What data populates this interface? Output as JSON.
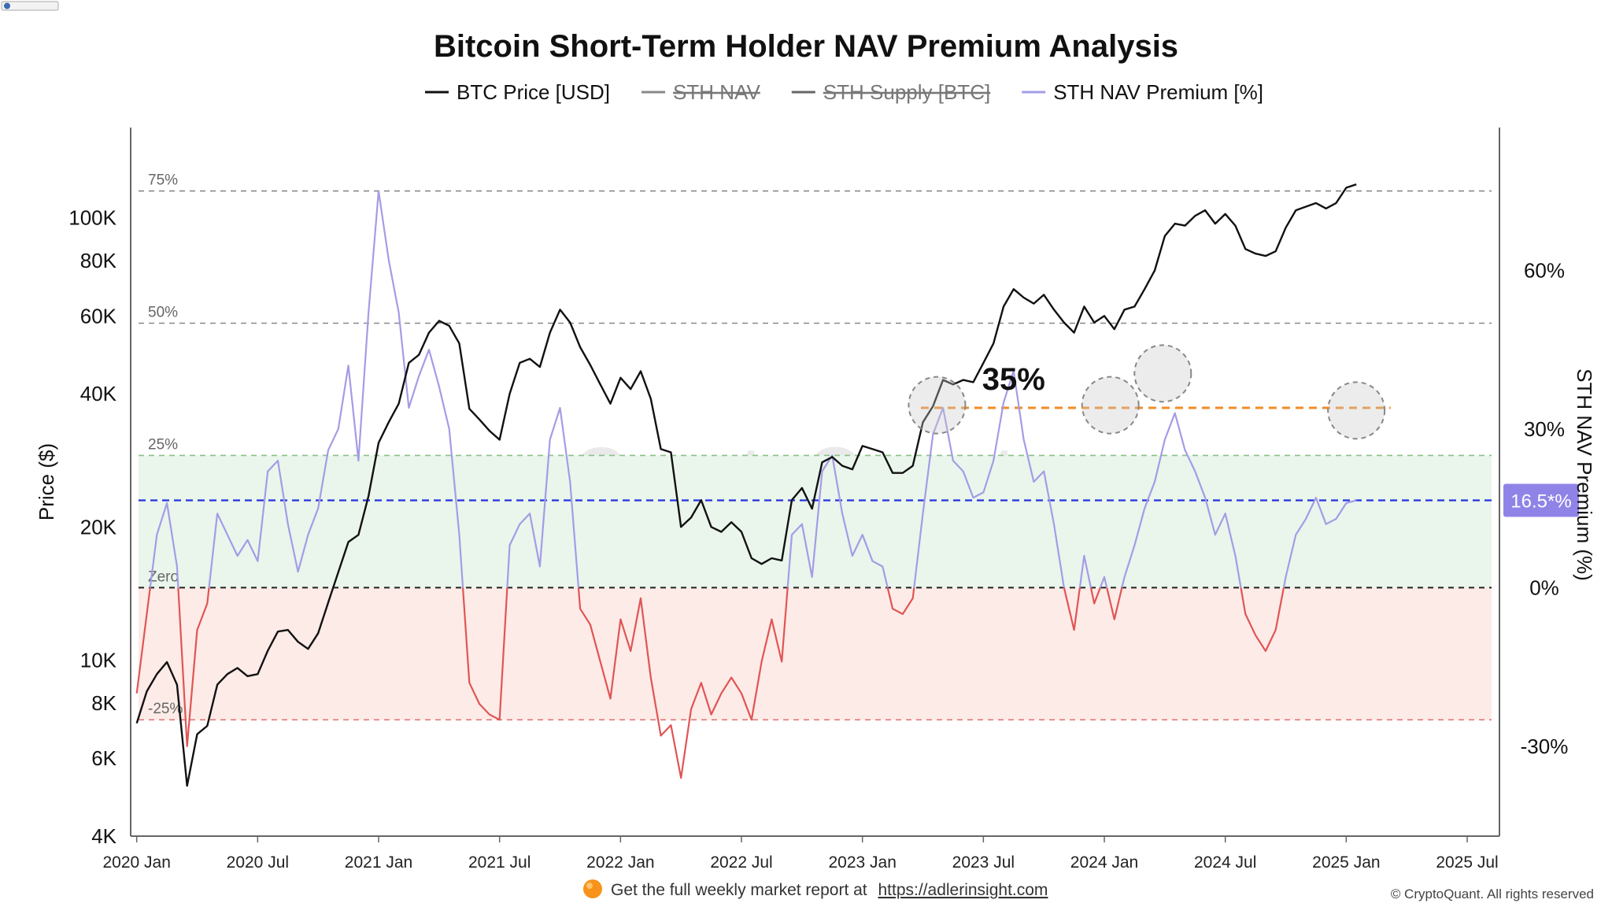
{
  "site_badge": "",
  "chart_data": {
    "type": "line",
    "title": "Bitcoin Short-Term Holder NAV Premium Analysis",
    "legend": [
      {
        "label": "BTC Price [USD]",
        "color": "#111111",
        "hidden": false
      },
      {
        "label": "STH NAV",
        "color": "#888888",
        "hidden": true
      },
      {
        "label": "STH Supply [BTC]",
        "color": "#666666",
        "hidden": true
      },
      {
        "label": "STH NAV Premium [%]",
        "color": "#a49ce6",
        "hidden": false
      }
    ],
    "y_left": {
      "label": "Price ($)",
      "scale": "log",
      "range": [
        4000,
        160000
      ],
      "ticks": [
        {
          "value": 4000,
          "label": "4K"
        },
        {
          "value": 6000,
          "label": "6K"
        },
        {
          "value": 8000,
          "label": "8K"
        },
        {
          "value": 10000,
          "label": "10K"
        },
        {
          "value": 20000,
          "label": "20K"
        },
        {
          "value": 40000,
          "label": "40K"
        },
        {
          "value": 60000,
          "label": "60K"
        },
        {
          "value": 80000,
          "label": "80K"
        },
        {
          "value": 100000,
          "label": "100K"
        }
      ]
    },
    "y_right": {
      "label": "STH NAV Premium (%)",
      "range": [
        -47,
        87
      ],
      "ticks": [
        {
          "value": -30,
          "label": "-30%"
        },
        {
          "value": 0,
          "label": "0%"
        },
        {
          "value": 30,
          "label": "30%"
        },
        {
          "value": 60,
          "label": "60%"
        }
      ]
    },
    "x_ticks": [
      "2020 Jan",
      "2020 Jul",
      "2021 Jan",
      "2021 Jul",
      "2022 Jan",
      "2022 Jul",
      "2023 Jan",
      "2023 Jul",
      "2024 Jan",
      "2024 Jul",
      "2025 Jan",
      "2025 Jul"
    ],
    "x_range_months": [
      -0.3,
      67.6
    ],
    "reference_lines": [
      {
        "value": 75,
        "label": "75%",
        "color": "#888888"
      },
      {
        "value": 50,
        "label": "50%",
        "color": "#888888"
      },
      {
        "value": 25,
        "label": "25%",
        "color": "#88c288"
      },
      {
        "value": 0,
        "label": "Zero",
        "color": "#222222"
      },
      {
        "value": -25,
        "label": "-25%",
        "color": "#e07070"
      }
    ],
    "bands": [
      {
        "from": 0,
        "to": 25,
        "color": "#eaf5ec"
      },
      {
        "from": -25,
        "to": 0,
        "color": "#fdebe7"
      }
    ],
    "current_line": {
      "value": 16.5,
      "label": "16.5*%",
      "color": "#2233dd"
    },
    "threshold_line": {
      "value": 34,
      "color": "#f28c28"
    },
    "annotation": {
      "text": "35%",
      "x": 43.5,
      "y": 38
    },
    "highlight_circles": [
      {
        "x": 39.7,
        "y": 34.5
      },
      {
        "x": 48.3,
        "y": 34.5
      },
      {
        "x": 50.9,
        "y": 40.5
      },
      {
        "x": 60.5,
        "y": 33.5
      }
    ],
    "price_series": {
      "name": "BTC Price [USD]",
      "points": [
        [
          0,
          7200
        ],
        [
          0.5,
          8500
        ],
        [
          1,
          9300
        ],
        [
          1.5,
          9900
        ],
        [
          2,
          8800
        ],
        [
          2.5,
          5200
        ],
        [
          3,
          6800
        ],
        [
          3.5,
          7100
        ],
        [
          4,
          8800
        ],
        [
          4.5,
          9300
        ],
        [
          5,
          9600
        ],
        [
          5.5,
          9200
        ],
        [
          6,
          9300
        ],
        [
          6.5,
          10500
        ],
        [
          7,
          11600
        ],
        [
          7.5,
          11700
        ],
        [
          8,
          11000
        ],
        [
          8.5,
          10600
        ],
        [
          9,
          11500
        ],
        [
          9.5,
          13500
        ],
        [
          10,
          15800
        ],
        [
          10.5,
          18500
        ],
        [
          11,
          19200
        ],
        [
          11.5,
          23500
        ],
        [
          12,
          31000
        ],
        [
          12.5,
          34500
        ],
        [
          13,
          38000
        ],
        [
          13.5,
          47000
        ],
        [
          14,
          49000
        ],
        [
          14.5,
          55000
        ],
        [
          15,
          58500
        ],
        [
          15.5,
          57000
        ],
        [
          16,
          52000
        ],
        [
          16.5,
          37000
        ],
        [
          17,
          35000
        ],
        [
          17.5,
          33000
        ],
        [
          18,
          31500
        ],
        [
          18.5,
          40000
        ],
        [
          19,
          47000
        ],
        [
          19.5,
          48000
        ],
        [
          20,
          46000
        ],
        [
          20.5,
          55000
        ],
        [
          21,
          62000
        ],
        [
          21.5,
          58000
        ],
        [
          22,
          51000
        ],
        [
          22.5,
          46500
        ],
        [
          23,
          42000
        ],
        [
          23.5,
          38000
        ],
        [
          24,
          43500
        ],
        [
          24.5,
          41000
        ],
        [
          25,
          45000
        ],
        [
          25.5,
          39000
        ],
        [
          26,
          30000
        ],
        [
          26.5,
          29500
        ],
        [
          27,
          20000
        ],
        [
          27.5,
          21000
        ],
        [
          28,
          23000
        ],
        [
          28.5,
          20000
        ],
        [
          29,
          19500
        ],
        [
          29.5,
          20500
        ],
        [
          30,
          19500
        ],
        [
          30.5,
          17000
        ],
        [
          31,
          16500
        ],
        [
          31.5,
          17000
        ],
        [
          32,
          16800
        ],
        [
          32.5,
          23000
        ],
        [
          33,
          24500
        ],
        [
          33.5,
          22000
        ],
        [
          34,
          28000
        ],
        [
          34.5,
          28800
        ],
        [
          35,
          27500
        ],
        [
          35.5,
          27000
        ],
        [
          36,
          30500
        ],
        [
          36.5,
          30000
        ],
        [
          37,
          29500
        ],
        [
          37.5,
          26500
        ],
        [
          38,
          26500
        ],
        [
          38.5,
          27500
        ],
        [
          39,
          34500
        ],
        [
          39.5,
          37500
        ],
        [
          40,
          43000
        ],
        [
          40.5,
          42000
        ],
        [
          41,
          43000
        ],
        [
          41.5,
          42500
        ],
        [
          42,
          47000
        ],
        [
          42.5,
          52000
        ],
        [
          43,
          63000
        ],
        [
          43.5,
          69000
        ],
        [
          44,
          66000
        ],
        [
          44.5,
          64000
        ],
        [
          45,
          67000
        ],
        [
          45.5,
          62000
        ],
        [
          46,
          58000
        ],
        [
          46.5,
          55000
        ],
        [
          47,
          63000
        ],
        [
          47.5,
          58000
        ],
        [
          48,
          60000
        ],
        [
          48.5,
          56000
        ],
        [
          49,
          62000
        ],
        [
          49.5,
          63000
        ],
        [
          50,
          69000
        ],
        [
          50.5,
          76000
        ],
        [
          51,
          91000
        ],
        [
          51.5,
          97000
        ],
        [
          52,
          96000
        ],
        [
          52.5,
          101000
        ],
        [
          53,
          104000
        ],
        [
          53.5,
          97000
        ],
        [
          54,
          102000
        ],
        [
          54.5,
          96000
        ],
        [
          55,
          85000
        ],
        [
          55.5,
          83000
        ],
        [
          56,
          82000
        ],
        [
          56.5,
          84000
        ],
        [
          57,
          95000
        ],
        [
          57.5,
          104000
        ],
        [
          58,
          106000
        ],
        [
          58.5,
          108000
        ],
        [
          59,
          105000
        ],
        [
          59.5,
          108000
        ],
        [
          60,
          117000
        ],
        [
          60.5,
          119000
        ]
      ]
    },
    "premium_series": {
      "name": "STH NAV Premium [%]",
      "points": [
        [
          0,
          -20
        ],
        [
          0.5,
          -5
        ],
        [
          1,
          10
        ],
        [
          1.5,
          16
        ],
        [
          2,
          4
        ],
        [
          2.5,
          -30
        ],
        [
          3,
          -8
        ],
        [
          3.5,
          -3
        ],
        [
          4,
          14
        ],
        [
          4.5,
          10
        ],
        [
          5,
          6
        ],
        [
          5.5,
          9
        ],
        [
          6,
          5
        ],
        [
          6.5,
          22
        ],
        [
          7,
          24
        ],
        [
          7.5,
          12
        ],
        [
          8,
          3
        ],
        [
          8.5,
          10
        ],
        [
          9,
          15
        ],
        [
          9.5,
          26
        ],
        [
          10,
          30
        ],
        [
          10.5,
          42
        ],
        [
          11,
          24
        ],
        [
          11.5,
          52
        ],
        [
          12,
          75
        ],
        [
          12.5,
          62
        ],
        [
          13,
          52
        ],
        [
          13.5,
          34
        ],
        [
          14,
          40
        ],
        [
          14.5,
          45
        ],
        [
          15,
          38
        ],
        [
          15.5,
          30
        ],
        [
          16,
          10
        ],
        [
          16.5,
          -18
        ],
        [
          17,
          -22
        ],
        [
          17.5,
          -24
        ],
        [
          18,
          -25
        ],
        [
          18.5,
          8
        ],
        [
          19,
          12
        ],
        [
          19.5,
          14
        ],
        [
          20,
          4
        ],
        [
          20.5,
          28
        ],
        [
          21,
          34
        ],
        [
          21.5,
          20
        ],
        [
          22,
          -4
        ],
        [
          22.5,
          -7
        ],
        [
          23,
          -14
        ],
        [
          23.5,
          -21
        ],
        [
          24,
          -6
        ],
        [
          24.5,
          -12
        ],
        [
          25,
          -2
        ],
        [
          25.5,
          -17
        ],
        [
          26,
          -28
        ],
        [
          26.5,
          -26
        ],
        [
          27,
          -36
        ],
        [
          27.5,
          -23
        ],
        [
          28,
          -18
        ],
        [
          28.5,
          -24
        ],
        [
          29,
          -20
        ],
        [
          29.5,
          -17
        ],
        [
          30,
          -20
        ],
        [
          30.5,
          -25
        ],
        [
          31,
          -14
        ],
        [
          31.5,
          -6
        ],
        [
          32,
          -14
        ],
        [
          32.5,
          10
        ],
        [
          33,
          12
        ],
        [
          33.5,
          2
        ],
        [
          34,
          22
        ],
        [
          34.5,
          25
        ],
        [
          35,
          14
        ],
        [
          35.5,
          6
        ],
        [
          36,
          10
        ],
        [
          36.5,
          5
        ],
        [
          37,
          4
        ],
        [
          37.5,
          -4
        ],
        [
          38,
          -5
        ],
        [
          38.5,
          -2
        ],
        [
          39,
          14
        ],
        [
          39.5,
          29
        ],
        [
          40,
          34
        ],
        [
          40.5,
          24
        ],
        [
          41,
          22
        ],
        [
          41.5,
          17
        ],
        [
          42,
          18
        ],
        [
          42.5,
          24
        ],
        [
          43,
          35
        ],
        [
          43.5,
          41
        ],
        [
          44,
          28
        ],
        [
          44.5,
          20
        ],
        [
          45,
          22
        ],
        [
          45.5,
          12
        ],
        [
          46,
          0
        ],
        [
          46.5,
          -8
        ],
        [
          47,
          6
        ],
        [
          47.5,
          -3
        ],
        [
          48,
          2
        ],
        [
          48.5,
          -6
        ],
        [
          49,
          2
        ],
        [
          49.5,
          8
        ],
        [
          50,
          15
        ],
        [
          50.5,
          20
        ],
        [
          51,
          28
        ],
        [
          51.5,
          33
        ],
        [
          52,
          26
        ],
        [
          52.5,
          22
        ],
        [
          53,
          17
        ],
        [
          53.5,
          10
        ],
        [
          54,
          14
        ],
        [
          54.5,
          6
        ],
        [
          55,
          -5
        ],
        [
          55.5,
          -9
        ],
        [
          56,
          -12
        ],
        [
          56.5,
          -8
        ],
        [
          57,
          2
        ],
        [
          57.5,
          10
        ],
        [
          58,
          13
        ],
        [
          58.5,
          17
        ],
        [
          59,
          12
        ],
        [
          59.5,
          13
        ],
        [
          60,
          16
        ],
        [
          60.5,
          16.5
        ]
      ]
    }
  },
  "footer": {
    "text": "Get the full weekly market report at",
    "link": "https://adlerinsight.com",
    "copyright": "© CryptoQuant. All rights reserved"
  },
  "watermark": "CryptoQuant"
}
